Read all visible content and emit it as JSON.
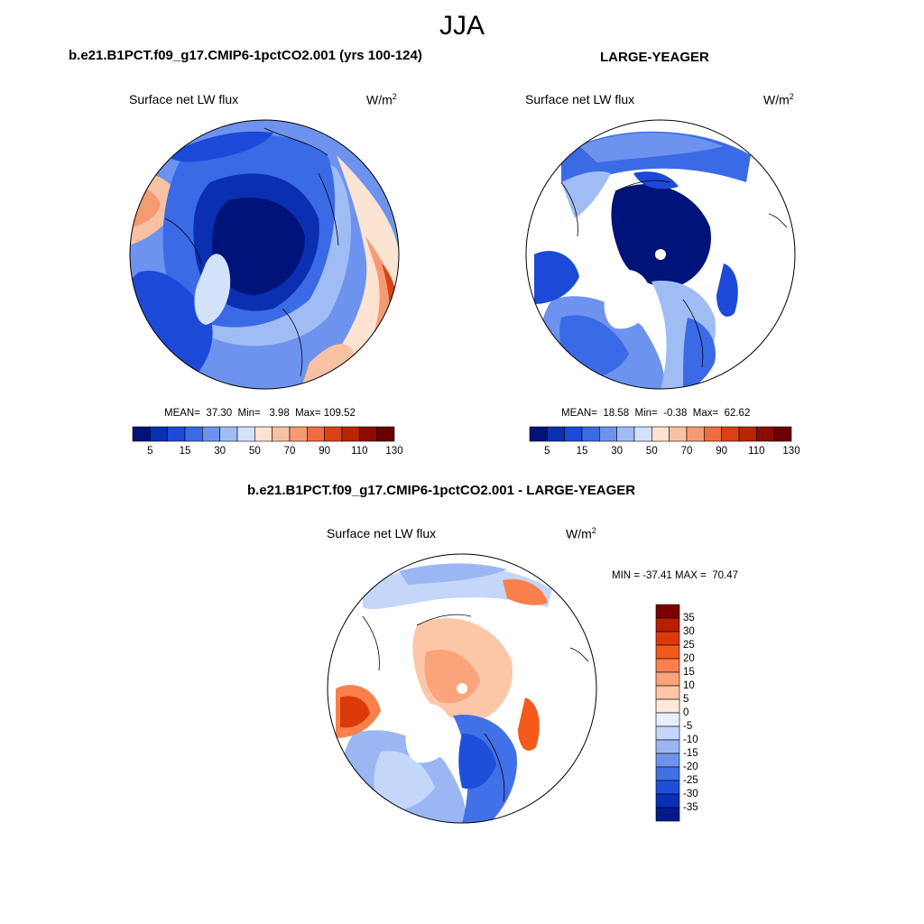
{
  "figure": {
    "title": "JJA"
  },
  "panels": [
    {
      "id": "case",
      "title": "b.e21.B1PCT.f09_g17.CMIP6-1pctCO2.001 (yrs 100-124)",
      "variable": "Surface net LW flux",
      "units_base": "W/m",
      "units_exp": "2",
      "stats_text": "MEAN=  37.30  Min=   3.98  Max= 109.52",
      "stats": {
        "mean": 37.3,
        "min": 3.98,
        "max": 109.52
      }
    },
    {
      "id": "obs",
      "title": "LARGE-YEAGER",
      "variable": "Surface net LW flux",
      "units_base": "W/m",
      "units_exp": "2",
      "stats_text": "MEAN=  18.58  Min=  -0.38  Max=  62.62",
      "stats": {
        "mean": 18.58,
        "min": -0.38,
        "max": 62.62
      }
    },
    {
      "id": "diff",
      "title": "b.e21.B1PCT.f09_g17.CMIP6-1pctCO2.001 - LARGE-YEAGER",
      "variable": "Surface net LW flux",
      "units_base": "W/m",
      "units_exp": "2",
      "stats_text": "MIN = -37.41 MAX =  70.47",
      "stats": {
        "min": -37.41,
        "max": 70.47
      }
    }
  ],
  "colorbar_abs": {
    "labels": [
      "5",
      "15",
      "30",
      "50",
      "70",
      "90",
      "110",
      "130"
    ],
    "colors": [
      "#00137a",
      "#0a2fb0",
      "#1d49d8",
      "#3b6ae6",
      "#6d93ee",
      "#a0bcf4",
      "#d2e2fa",
      "#fde3d1",
      "#f9c1a3",
      "#f59b74",
      "#ef6d42",
      "#dc4116",
      "#b82600",
      "#8c0c00",
      "#6a0000"
    ]
  },
  "colorbar_diff": {
    "labels": [
      "35",
      "30",
      "25",
      "20",
      "15",
      "10",
      "5",
      "0",
      "-5",
      "-10",
      "-15",
      "-20",
      "-25",
      "-30",
      "-35"
    ],
    "colors": [
      "#7d0000",
      "#b42000",
      "#dc3a0a",
      "#f45a1c",
      "#f9804c",
      "#fba37a",
      "#fdc6a6",
      "#fde9dc",
      "#e7efff",
      "#c4d6fa",
      "#9ab7f3",
      "#6e93ec",
      "#4270e6",
      "#1e4fdb",
      "#0a2fb8",
      "#041a8a"
    ]
  },
  "colors": {
    "land": "#ffffff",
    "warm": "#f9c1a3",
    "cold": "#0a2fb0"
  }
}
